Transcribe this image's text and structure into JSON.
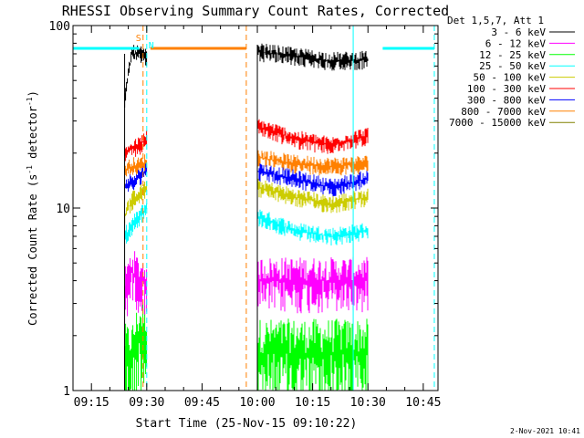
{
  "chart_data": {
    "type": "line",
    "title": "RHESSI Observing Summary Count Rates, Corrected",
    "xlabel": "Start Time (25-Nov-15 09:10:22)",
    "ylabel_main": "Corrected Count Rate (s",
    "ylabel_sup1": "-1",
    "ylabel_mid": " detector",
    "ylabel_sup2": "-1",
    "ylabel_end": ")",
    "timestamp": "2-Nov-2021 10:41",
    "y_scale": "log",
    "ylim": [
      1,
      100
    ],
    "xlim_minutes": [
      "09:10",
      "10:49"
    ],
    "x_ticks": [
      "09:15",
      "09:30",
      "09:45",
      "10:00",
      "10:15",
      "10:30",
      "10:45"
    ],
    "y_ticks": [
      "1",
      "10",
      "100"
    ],
    "legend_title": "Det 1,5,7, Att 1",
    "legend_position": "top-right",
    "series": [
      {
        "name": "3 - 6 keV",
        "color": "#000000",
        "seg1": [
          38,
          70,
          70,
          66
        ],
        "seg2": [
          72,
          68,
          64,
          65
        ]
      },
      {
        "name": "6 - 12 keV",
        "color": "#ff00ff",
        "seg1": [
          3.5,
          4.5,
          4,
          4
        ],
        "seg2": [
          4,
          4,
          4,
          4
        ]
      },
      {
        "name": "12 - 25 keV",
        "color": "#00ff00",
        "seg1": [
          1.5,
          1.5,
          2,
          2
        ],
        "seg2": [
          1.6,
          1.6,
          1.6,
          1.6
        ]
      },
      {
        "name": "25 - 50 keV",
        "color": "#00ffff",
        "seg1": [
          7,
          8,
          9,
          10
        ],
        "seg2": [
          9,
          7.5,
          7,
          7.5
        ]
      },
      {
        "name": "50 - 100 keV",
        "color": "#cccc00",
        "seg1": [
          9,
          11,
          12,
          13
        ],
        "seg2": [
          13,
          11.5,
          10.5,
          11.5
        ]
      },
      {
        "name": "100 - 300 keV",
        "color": "#ff0000",
        "seg1": [
          20,
          21,
          22,
          24
        ],
        "seg2": [
          28,
          24,
          22,
          25
        ]
      },
      {
        "name": "300 - 800 keV",
        "color": "#0000ff",
        "seg1": [
          13,
          14,
          15,
          16
        ],
        "seg2": [
          16,
          14.5,
          13,
          14.5
        ]
      },
      {
        "name": "800 - 7000 keV",
        "color": "#ff8000",
        "seg1": [
          16,
          17,
          17,
          18
        ],
        "seg2": [
          19,
          17.5,
          17,
          17.5
        ]
      },
      {
        "name": "7000 - 15000 keV",
        "color": "#808000",
        "seg1": [],
        "seg2": []
      }
    ],
    "flags": [
      {
        "label": "S",
        "color": "#ff8000"
      },
      {
        "label": "N",
        "color": "#00ffff"
      }
    ],
    "night_bars": [
      {
        "from": "09:10",
        "to": "09:28",
        "color": "#00ffff"
      },
      {
        "from": "09:31",
        "to": "09:57",
        "color": "#ff8000"
      },
      {
        "from": "10:34",
        "to": "10:48",
        "color": "#00ffff"
      }
    ],
    "data_segments": [
      {
        "from": "09:24",
        "to": "09:30"
      },
      {
        "from": "10:00",
        "to": "10:30"
      }
    ],
    "vertical_lines": [
      {
        "at": "09:10",
        "color": "#00ffff",
        "style": "solid"
      },
      {
        "at": "09:29",
        "color": "#ff8000",
        "style": "dashed"
      },
      {
        "at": "09:30",
        "color": "#00ffff",
        "style": "dashed"
      },
      {
        "at": "09:57",
        "color": "#ff8000",
        "style": "dashed"
      },
      {
        "at": "10:26",
        "color": "#00ffff",
        "style": "solid"
      },
      {
        "at": "10:48",
        "color": "#00ffff",
        "style": "dashed"
      }
    ]
  }
}
